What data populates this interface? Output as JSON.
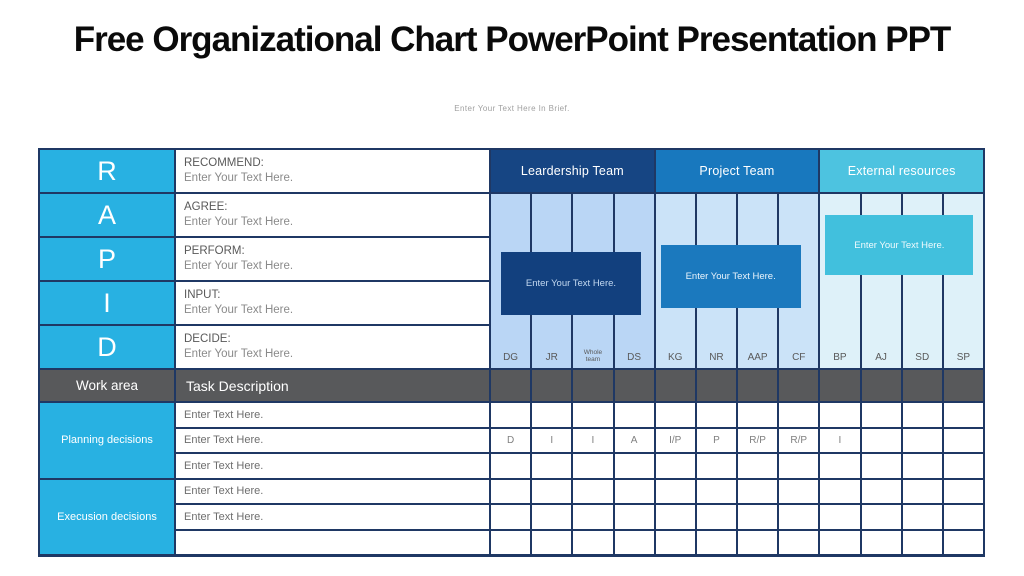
{
  "title": "Free Organizational Chart PowerPoint Presentation PPT",
  "subtitle": "Enter Your Text Here In Brief.",
  "colors": {
    "cyan_accent": "#28B1E2",
    "navy_border": "#1F3864",
    "leadership_header": "#164583",
    "leadership_body": "#BAD6F5",
    "leadership_box": "#12407E",
    "project_header": "#1878BE",
    "project_body": "#CBE3F8",
    "project_box": "#1B79BE",
    "external_header": "#4DC3E0",
    "external_body": "#DEF1F9",
    "external_box": "#41C0DD",
    "gray_row": "#58595B"
  },
  "rapid": {
    "rows": [
      {
        "letter": "R",
        "label": "RECOMMEND:",
        "placeholder": "Enter Your Text Here."
      },
      {
        "letter": "A",
        "label": "AGREE:",
        "placeholder": "Enter Your Text Here."
      },
      {
        "letter": "P",
        "label": "PERFORM:",
        "placeholder": "Enter Your Text Here."
      },
      {
        "letter": "I",
        "label": "INPUT:",
        "placeholder": "Enter Your Text Here."
      },
      {
        "letter": "D",
        "label": "DECIDE:",
        "placeholder": "Enter Your Text Here."
      }
    ]
  },
  "teams": [
    {
      "name": "Leardership Team",
      "box_text": "Enter Your Text Here.",
      "columns": [
        "DG",
        "JR",
        "Whole team",
        "DS"
      ]
    },
    {
      "name": "Project Team",
      "box_text": "Enter Your Text Here.",
      "columns": [
        "KG",
        "NR",
        "AAP",
        "CF"
      ]
    },
    {
      "name": "External resources",
      "box_text": "Enter Your Text Here.",
      "columns": [
        "BP",
        "AJ",
        "SD",
        "SP"
      ]
    }
  ],
  "work_table": {
    "work_area_header": "Work area",
    "task_header": "Task Description",
    "groups": [
      {
        "name": "Planning decisions",
        "rows": [
          "Enter Text Here.",
          "Enter Text Here.",
          "Enter Text Here."
        ]
      },
      {
        "name": "Execusion decisions",
        "rows": [
          "Enter Text Here.",
          "Enter Text Here.",
          ""
        ]
      }
    ],
    "matrix_columns": [
      "DG",
      "JR",
      "Whole team",
      "DS",
      "KG",
      "NR",
      "AAP",
      "CF",
      "BP",
      "AJ",
      "SD",
      "SP"
    ],
    "matrix_rows": [
      [
        "",
        "",
        "",
        "",
        "",
        "",
        "",
        "",
        "",
        "",
        "",
        ""
      ],
      [
        "D",
        "I",
        "I",
        "A",
        "I/P",
        "P",
        "R/P",
        "R/P",
        "I",
        "",
        "",
        ""
      ],
      [
        "",
        "",
        "",
        "",
        "",
        "",
        "",
        "",
        "",
        "",
        "",
        ""
      ],
      [
        "",
        "",
        "",
        "",
        "",
        "",
        "",
        "",
        "",
        "",
        "",
        ""
      ],
      [
        "",
        "",
        "",
        "",
        "",
        "",
        "",
        "",
        "",
        "",
        "",
        ""
      ],
      [
        "",
        "",
        "",
        "",
        "",
        "",
        "",
        "",
        "",
        "",
        "",
        ""
      ]
    ]
  }
}
